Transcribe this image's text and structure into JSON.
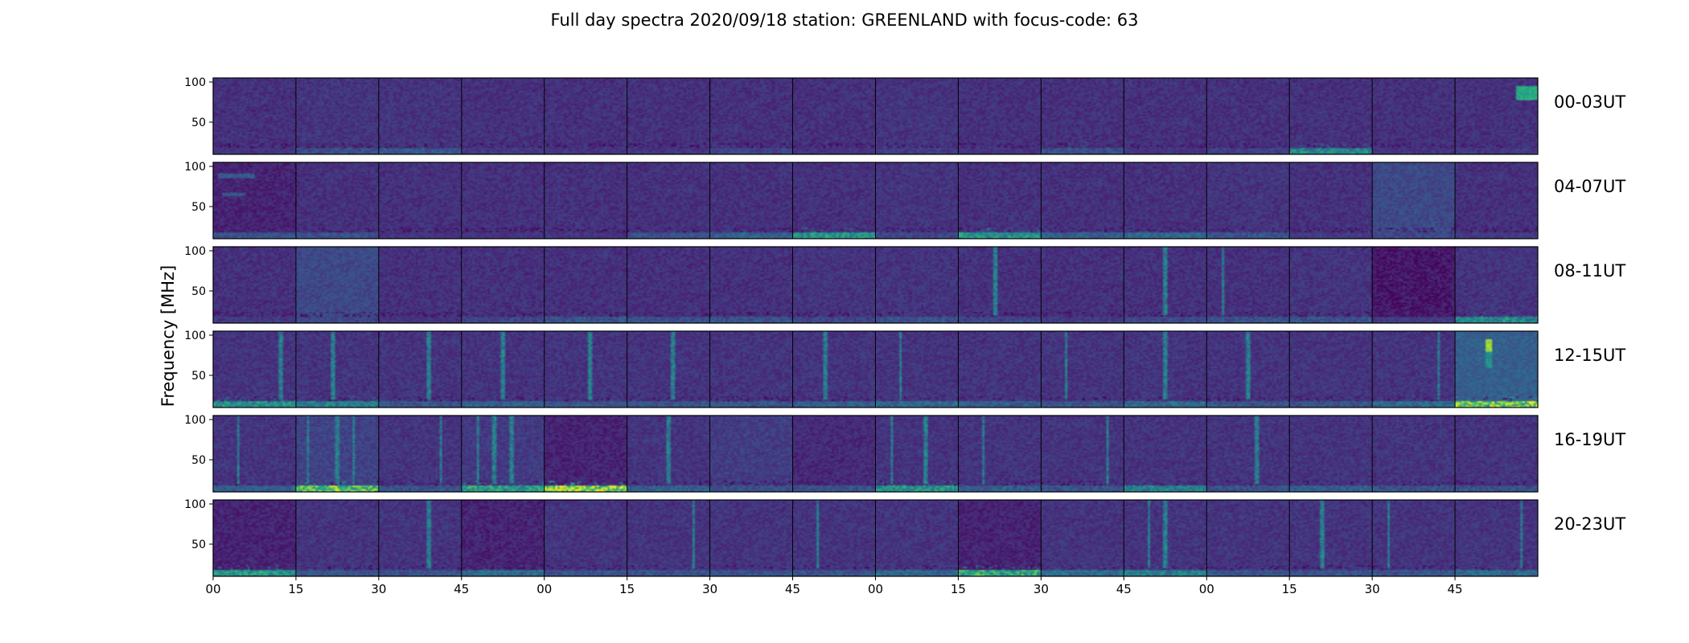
{
  "chart_data": {
    "type": "heatmap",
    "title": "Full day spectra 2020/09/18 station: GREENLAND with focus-code: 63",
    "ylabel": "Frequency [MHz]",
    "xlabel": "",
    "ylim": [
      10,
      105
    ],
    "yticks": [
      50,
      100
    ],
    "xtick_labels": [
      "00",
      "15",
      "30",
      "45",
      "00",
      "15",
      "30",
      "45",
      "00",
      "15",
      "30",
      "45",
      "00",
      "15",
      "30",
      "45"
    ],
    "columns_per_row": 16,
    "minutes_per_panel": 15,
    "colormap": "viridis",
    "rows": [
      {
        "label": "00-03UT",
        "panels": [
          {
            "base": 0.14,
            "low": 0.18
          },
          {
            "base": 0.15,
            "low": 0.28
          },
          {
            "base": 0.15,
            "low": 0.32
          },
          {
            "base": 0.14,
            "low": 0.2
          },
          {
            "base": 0.14,
            "low": 0.18
          },
          {
            "base": 0.14,
            "low": 0.18
          },
          {
            "base": 0.14,
            "low": 0.25
          },
          {
            "base": 0.14,
            "low": 0.18
          },
          {
            "base": 0.15,
            "low": 0.22
          },
          {
            "base": 0.14,
            "low": 0.18
          },
          {
            "base": 0.14,
            "low": 0.28
          },
          {
            "base": 0.14,
            "low": 0.18
          },
          {
            "base": 0.14,
            "low": 0.22
          },
          {
            "base": 0.14,
            "low": 0.55
          },
          {
            "base": 0.14,
            "low": 0.18
          },
          {
            "base": 0.14,
            "low": 0.2,
            "bands": [
              {
                "f0": 78,
                "f1": 95,
                "t0": 0.75,
                "t1": 1.0,
                "v": 0.6
              }
            ]
          }
        ]
      },
      {
        "label": "04-07UT",
        "panels": [
          {
            "base": 0.1,
            "low": 0.3,
            "bands": [
              {
                "f0": 86,
                "f1": 92,
                "t0": 0.05,
                "t1": 0.5,
                "v": 0.28
              },
              {
                "f0": 64,
                "f1": 67,
                "t0": 0.1,
                "t1": 0.4,
                "v": 0.25
              }
            ]
          },
          {
            "base": 0.14,
            "low": 0.3
          },
          {
            "base": 0.14,
            "low": 0.18
          },
          {
            "base": 0.14,
            "low": 0.18
          },
          {
            "base": 0.14,
            "low": 0.18
          },
          {
            "base": 0.14,
            "low": 0.3
          },
          {
            "base": 0.14,
            "low": 0.35
          },
          {
            "base": 0.14,
            "low": 0.6
          },
          {
            "base": 0.15,
            "low": 0.25
          },
          {
            "base": 0.14,
            "low": 0.6
          },
          {
            "base": 0.14,
            "low": 0.35
          },
          {
            "base": 0.14,
            "low": 0.4
          },
          {
            "base": 0.15,
            "low": 0.3
          },
          {
            "base": 0.14,
            "low": 0.2
          },
          {
            "base": 0.22,
            "low": 0.25
          },
          {
            "base": 0.14,
            "low": 0.2
          }
        ]
      },
      {
        "label": "08-11UT",
        "panels": [
          {
            "base": 0.14,
            "low": 0.2
          },
          {
            "base": 0.22,
            "low": 0.25
          },
          {
            "base": 0.14,
            "low": 0.18
          },
          {
            "base": 0.14,
            "low": 0.25
          },
          {
            "base": 0.14,
            "low": 0.3
          },
          {
            "base": 0.14,
            "low": 0.28
          },
          {
            "base": 0.14,
            "low": 0.3
          },
          {
            "base": 0.15,
            "low": 0.25
          },
          {
            "base": 0.15,
            "low": 0.3
          },
          {
            "base": 0.14,
            "low": 0.25,
            "stripes": [
              0.45
            ]
          },
          {
            "base": 0.14,
            "low": 0.2
          },
          {
            "base": 0.14,
            "low": 0.25,
            "stripes": [
              0.5
            ]
          },
          {
            "base": 0.14,
            "low": 0.3,
            "stripes": [
              0.2
            ]
          },
          {
            "base": 0.15,
            "low": 0.3
          },
          {
            "base": 0.08,
            "low": 0.2,
            "bands": [
              {
                "f0": 28,
                "f1": 102,
                "t0": 0.05,
                "t1": 0.95,
                "v": 0.06
              }
            ]
          },
          {
            "base": 0.15,
            "low": 0.55
          }
        ]
      },
      {
        "label": "12-15UT",
        "panels": [
          {
            "base": 0.15,
            "low": 0.6,
            "stripes": [
              0.82
            ]
          },
          {
            "base": 0.15,
            "low": 0.5,
            "stripes": [
              0.45
            ]
          },
          {
            "base": 0.15,
            "low": 0.3,
            "stripes": [
              0.6
            ]
          },
          {
            "base": 0.15,
            "low": 0.35,
            "stripes": [
              0.5
            ]
          },
          {
            "base": 0.15,
            "low": 0.3,
            "stripes": [
              0.55
            ]
          },
          {
            "base": 0.15,
            "low": 0.3,
            "stripes": [
              0.55
            ]
          },
          {
            "base": 0.15,
            "low": 0.3
          },
          {
            "base": 0.15,
            "low": 0.35,
            "stripes": [
              0.4
            ]
          },
          {
            "base": 0.15,
            "low": 0.4,
            "stripes": [
              0.3
            ]
          },
          {
            "base": 0.15,
            "low": 0.35
          },
          {
            "base": 0.15,
            "low": 0.3,
            "stripes": [
              0.3
            ]
          },
          {
            "base": 0.15,
            "low": 0.4,
            "stripes": [
              0.5
            ]
          },
          {
            "base": 0.15,
            "low": 0.3,
            "stripes": [
              0.5
            ]
          },
          {
            "base": 0.15,
            "low": 0.3
          },
          {
            "base": 0.15,
            "low": 0.4,
            "stripes": [
              0.8
            ]
          },
          {
            "base": 0.3,
            "low": 0.9,
            "bands": [
              {
                "f0": 80,
                "f1": 95,
                "t0": 0.38,
                "t1": 0.46,
                "v": 0.85
              },
              {
                "f0": 60,
                "f1": 80,
                "t0": 0.38,
                "t1": 0.46,
                "v": 0.5
              }
            ]
          }
        ]
      },
      {
        "label": "16-19UT",
        "panels": [
          {
            "base": 0.15,
            "low": 0.35,
            "stripes": [
              0.3
            ]
          },
          {
            "base": 0.2,
            "low": 0.85,
            "stripes": [
              0.15,
              0.5,
              0.7
            ]
          },
          {
            "base": 0.15,
            "low": 0.3,
            "stripes": [
              0.75
            ]
          },
          {
            "base": 0.17,
            "low": 0.65,
            "stripes": [
              0.2,
              0.4,
              0.6
            ]
          },
          {
            "base": 0.1,
            "low": 0.95
          },
          {
            "base": 0.15,
            "low": 0.35,
            "stripes": [
              0.5
            ]
          },
          {
            "base": 0.18,
            "low": 0.3
          },
          {
            "base": 0.12,
            "low": 0.3
          },
          {
            "base": 0.15,
            "low": 0.6,
            "stripes": [
              0.2,
              0.6
            ]
          },
          {
            "base": 0.15,
            "low": 0.35,
            "stripes": [
              0.3
            ]
          },
          {
            "base": 0.15,
            "low": 0.3,
            "stripes": [
              0.8
            ]
          },
          {
            "base": 0.15,
            "low": 0.5
          },
          {
            "base": 0.15,
            "low": 0.3,
            "stripes": [
              0.6
            ]
          },
          {
            "base": 0.15,
            "low": 0.35
          },
          {
            "base": 0.15,
            "low": 0.3
          },
          {
            "base": 0.15,
            "low": 0.3
          }
        ]
      },
      {
        "label": "20-23UT",
        "panels": [
          {
            "base": 0.1,
            "low": 0.6
          },
          {
            "base": 0.15,
            "low": 0.3
          },
          {
            "base": 0.15,
            "low": 0.3,
            "stripes": [
              0.6
            ]
          },
          {
            "base": 0.1,
            "low": 0.4
          },
          {
            "base": 0.15,
            "low": 0.3
          },
          {
            "base": 0.15,
            "low": 0.3,
            "stripes": [
              0.8
            ]
          },
          {
            "base": 0.15,
            "low": 0.3
          },
          {
            "base": 0.15,
            "low": 0.3,
            "stripes": [
              0.3
            ]
          },
          {
            "base": 0.15,
            "low": 0.4
          },
          {
            "base": 0.1,
            "low": 0.7
          },
          {
            "base": 0.15,
            "low": 0.4
          },
          {
            "base": 0.15,
            "low": 0.5,
            "stripes": [
              0.3,
              0.5
            ]
          },
          {
            "base": 0.15,
            "low": 0.3
          },
          {
            "base": 0.15,
            "low": 0.3,
            "stripes": [
              0.4
            ]
          },
          {
            "base": 0.15,
            "low": 0.3,
            "stripes": [
              0.2
            ]
          },
          {
            "base": 0.15,
            "low": 0.4,
            "stripes": [
              0.8
            ]
          }
        ]
      }
    ]
  }
}
